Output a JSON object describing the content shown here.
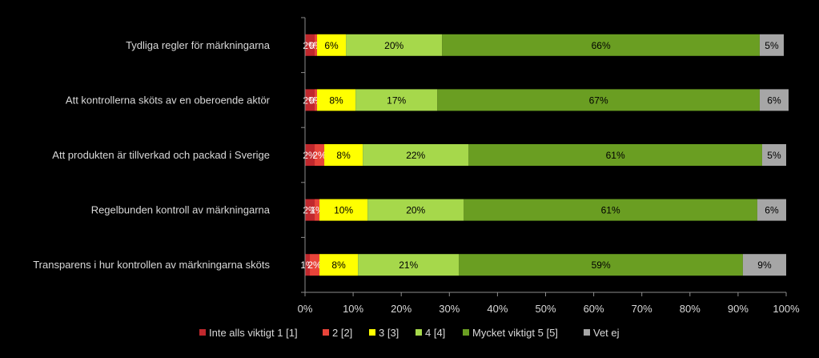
{
  "chart_data": {
    "type": "bar",
    "orientation": "horizontal",
    "stacked": true,
    "categories": [
      "Tydliga regler för märkningarna",
      "Att kontrollerna sköts av en oberoende aktör",
      "Att produkten är tillverkad och packad i Sverige",
      "Regelbunden kontroll av märkningarna",
      "Transparens i hur kontrollen av märkningarna sköts"
    ],
    "series": [
      {
        "name": "Inte alls viktigt 1 [1]",
        "color": "#c0282d",
        "text_color": "#ffffff",
        "values": [
          2,
          2,
          2,
          2,
          1
        ],
        "labels": [
          "2%",
          "2%",
          "2%",
          "2%",
          "1%"
        ]
      },
      {
        "name": "2 [2]",
        "color": "#e8443a",
        "text_color": "#ffffff",
        "values": [
          0.5,
          0.5,
          2,
          1,
          2
        ],
        "labels": [
          "0%",
          "0%",
          "2%",
          "1%",
          "2%"
        ]
      },
      {
        "name": "3 [3]",
        "color": "#ffff00",
        "text_color": "#000000",
        "values": [
          6,
          8,
          8,
          10,
          8
        ],
        "labels": [
          "6%",
          "8%",
          "8%",
          "10%",
          "8%"
        ]
      },
      {
        "name": "4 [4]",
        "color": "#a6d84b",
        "text_color": "#000000",
        "values": [
          20,
          17,
          22,
          20,
          21
        ],
        "labels": [
          "20%",
          "17%",
          "22%",
          "20%",
          "21%"
        ]
      },
      {
        "name": "Mycket viktigt 5 [5]",
        "color": "#6a9e22",
        "text_color": "#000000",
        "values": [
          66,
          67,
          61,
          61,
          59
        ],
        "labels": [
          "66%",
          "67%",
          "61%",
          "61%",
          "59%"
        ]
      },
      {
        "name": "Vet ej",
        "color": "#a6a6a6",
        "text_color": "#000000",
        "values": [
          5,
          6,
          5,
          6,
          9
        ],
        "labels": [
          "5%",
          "6%",
          "5%",
          "6%",
          "9%"
        ]
      }
    ],
    "xlim": [
      0,
      100
    ],
    "x_ticks": [
      "0%",
      "10%",
      "20%",
      "30%",
      "40%",
      "50%",
      "60%",
      "70%",
      "80%",
      "90%",
      "100%"
    ],
    "grid": false,
    "legend_position": "bottom"
  }
}
